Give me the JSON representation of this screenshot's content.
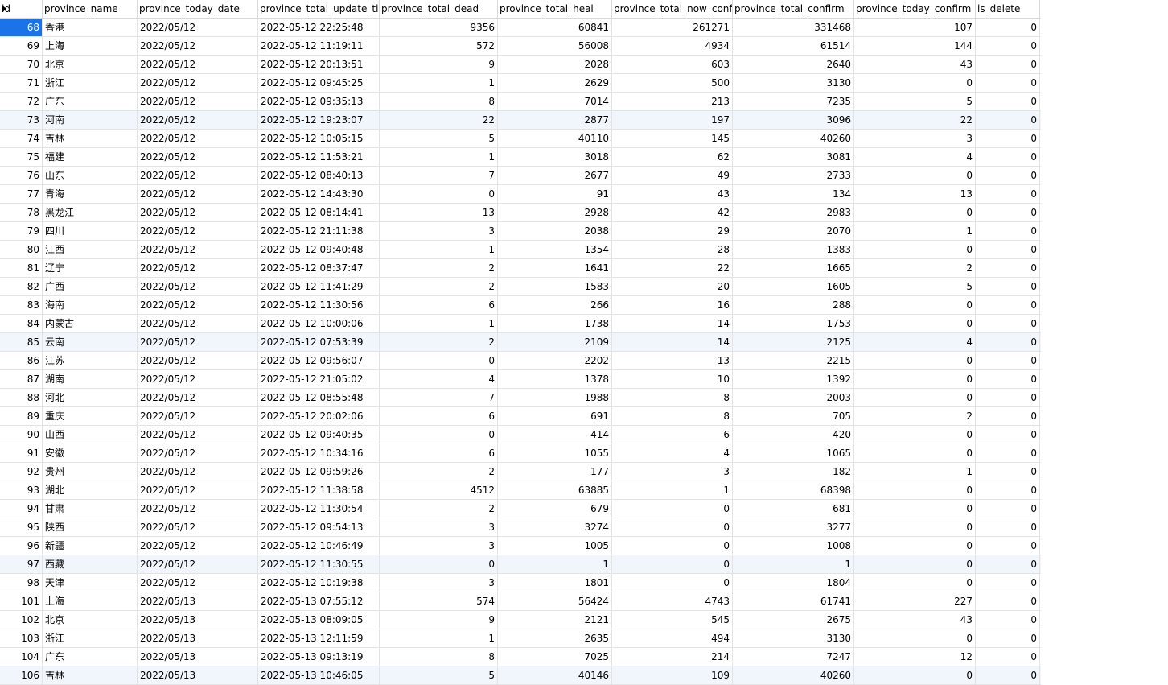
{
  "columns": [
    "id",
    "province_name",
    "province_today_date",
    "province_total_update_time",
    "province_total_dead",
    "province_total_heal",
    "province_total_now_confirm",
    "province_total_confirm",
    "province_today_confirm",
    "is_delete"
  ],
  "rows": [
    [
      "68",
      "香港",
      "2022/05/12",
      "2022-05-12 22:25:48",
      "9356",
      "60841",
      "261271",
      "331468",
      "107",
      "0"
    ],
    [
      "69",
      "上海",
      "2022/05/12",
      "2022-05-12 11:19:11",
      "572",
      "56008",
      "4934",
      "61514",
      "144",
      "0"
    ],
    [
      "70",
      "北京",
      "2022/05/12",
      "2022-05-12 20:13:51",
      "9",
      "2028",
      "603",
      "2640",
      "43",
      "0"
    ],
    [
      "71",
      "浙江",
      "2022/05/12",
      "2022-05-12 09:45:25",
      "1",
      "2629",
      "500",
      "3130",
      "0",
      "0"
    ],
    [
      "72",
      "广东",
      "2022/05/12",
      "2022-05-12 09:35:13",
      "8",
      "7014",
      "213",
      "7235",
      "5",
      "0"
    ],
    [
      "73",
      "河南",
      "2022/05/12",
      "2022-05-12 19:23:07",
      "22",
      "2877",
      "197",
      "3096",
      "22",
      "0"
    ],
    [
      "74",
      "吉林",
      "2022/05/12",
      "2022-05-12 10:05:15",
      "5",
      "40110",
      "145",
      "40260",
      "3",
      "0"
    ],
    [
      "75",
      "福建",
      "2022/05/12",
      "2022-05-12 11:53:21",
      "1",
      "3018",
      "62",
      "3081",
      "4",
      "0"
    ],
    [
      "76",
      "山东",
      "2022/05/12",
      "2022-05-12 08:40:13",
      "7",
      "2677",
      "49",
      "2733",
      "0",
      "0"
    ],
    [
      "77",
      "青海",
      "2022/05/12",
      "2022-05-12 14:43:30",
      "0",
      "91",
      "43",
      "134",
      "13",
      "0"
    ],
    [
      "78",
      "黑龙江",
      "2022/05/12",
      "2022-05-12 08:14:41",
      "13",
      "2928",
      "42",
      "2983",
      "0",
      "0"
    ],
    [
      "79",
      "四川",
      "2022/05/12",
      "2022-05-12 21:11:38",
      "3",
      "2038",
      "29",
      "2070",
      "1",
      "0"
    ],
    [
      "80",
      "江西",
      "2022/05/12",
      "2022-05-12 09:40:48",
      "1",
      "1354",
      "28",
      "1383",
      "0",
      "0"
    ],
    [
      "81",
      "辽宁",
      "2022/05/12",
      "2022-05-12 08:37:47",
      "2",
      "1641",
      "22",
      "1665",
      "2",
      "0"
    ],
    [
      "82",
      "广西",
      "2022/05/12",
      "2022-05-12 11:41:29",
      "2",
      "1583",
      "20",
      "1605",
      "5",
      "0"
    ],
    [
      "83",
      "海南",
      "2022/05/12",
      "2022-05-12 11:30:56",
      "6",
      "266",
      "16",
      "288",
      "0",
      "0"
    ],
    [
      "84",
      "内蒙古",
      "2022/05/12",
      "2022-05-12 10:00:06",
      "1",
      "1738",
      "14",
      "1753",
      "0",
      "0"
    ],
    [
      "85",
      "云南",
      "2022/05/12",
      "2022-05-12 07:53:39",
      "2",
      "2109",
      "14",
      "2125",
      "4",
      "0"
    ],
    [
      "86",
      "江苏",
      "2022/05/12",
      "2022-05-12 09:56:07",
      "0",
      "2202",
      "13",
      "2215",
      "0",
      "0"
    ],
    [
      "87",
      "湖南",
      "2022/05/12",
      "2022-05-12 21:05:02",
      "4",
      "1378",
      "10",
      "1392",
      "0",
      "0"
    ],
    [
      "88",
      "河北",
      "2022/05/12",
      "2022-05-12 08:55:48",
      "7",
      "1988",
      "8",
      "2003",
      "0",
      "0"
    ],
    [
      "89",
      "重庆",
      "2022/05/12",
      "2022-05-12 20:02:06",
      "6",
      "691",
      "8",
      "705",
      "2",
      "0"
    ],
    [
      "90",
      "山西",
      "2022/05/12",
      "2022-05-12 09:40:35",
      "0",
      "414",
      "6",
      "420",
      "0",
      "0"
    ],
    [
      "91",
      "安徽",
      "2022/05/12",
      "2022-05-12 10:34:16",
      "6",
      "1055",
      "4",
      "1065",
      "0",
      "0"
    ],
    [
      "92",
      "贵州",
      "2022/05/12",
      "2022-05-12 09:59:26",
      "2",
      "177",
      "3",
      "182",
      "1",
      "0"
    ],
    [
      "93",
      "湖北",
      "2022/05/12",
      "2022-05-12 11:38:58",
      "4512",
      "63885",
      "1",
      "68398",
      "0",
      "0"
    ],
    [
      "94",
      "甘肃",
      "2022/05/12",
      "2022-05-12 11:30:54",
      "2",
      "679",
      "0",
      "681",
      "0",
      "0"
    ],
    [
      "95",
      "陕西",
      "2022/05/12",
      "2022-05-12 09:54:13",
      "3",
      "3274",
      "0",
      "3277",
      "0",
      "0"
    ],
    [
      "96",
      "新疆",
      "2022/05/12",
      "2022-05-12 10:46:49",
      "3",
      "1005",
      "0",
      "1008",
      "0",
      "0"
    ],
    [
      "97",
      "西藏",
      "2022/05/12",
      "2022-05-12 11:30:55",
      "0",
      "1",
      "0",
      "1",
      "0",
      "0"
    ],
    [
      "98",
      "天津",
      "2022/05/12",
      "2022-05-12 10:19:38",
      "3",
      "1801",
      "0",
      "1804",
      "0",
      "0"
    ],
    [
      "101",
      "上海",
      "2022/05/13",
      "2022-05-13 07:55:12",
      "574",
      "56424",
      "4743",
      "61741",
      "227",
      "0"
    ],
    [
      "102",
      "北京",
      "2022/05/13",
      "2022-05-13 08:09:05",
      "9",
      "2121",
      "545",
      "2675",
      "43",
      "0"
    ],
    [
      "103",
      "浙江",
      "2022/05/13",
      "2022-05-13 12:11:59",
      "1",
      "2635",
      "494",
      "3130",
      "0",
      "0"
    ],
    [
      "104",
      "广东",
      "2022/05/13",
      "2022-05-13 09:13:19",
      "8",
      "7025",
      "214",
      "7247",
      "12",
      "0"
    ],
    [
      "106",
      "吉林",
      "2022/05/13",
      "2022-05-13 10:46:05",
      "5",
      "40146",
      "109",
      "40260",
      "0",
      "0"
    ]
  ],
  "selected_row": 0,
  "highlighted_rows": [
    5,
    17,
    29,
    35
  ],
  "colors": {
    "selection": "#1a73e8",
    "highlight": "#f0f6fc",
    "grid_line": "#e3e3e3"
  }
}
